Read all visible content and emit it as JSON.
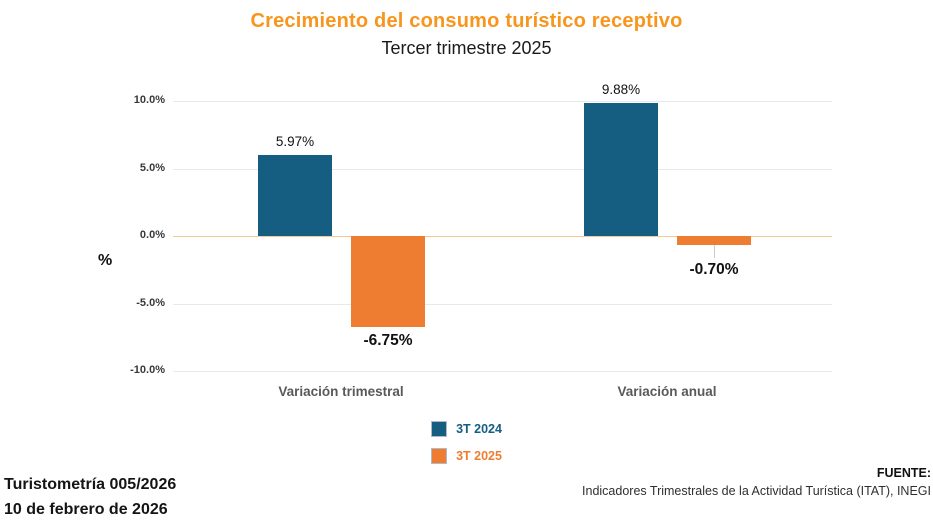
{
  "chart_data": {
    "type": "bar",
    "title": "Crecimiento del consumo turístico receptivo",
    "subtitle": "Tercer trimestre 2025",
    "categories": [
      "Variación trimestral",
      "Variación anual"
    ],
    "series": [
      {
        "name": "3T 2024",
        "color": "#155E82",
        "values": [
          5.97,
          9.88
        ],
        "labels": [
          "5.97%",
          "9.88%"
        ]
      },
      {
        "name": "3T 2025",
        "color": "#EE7D31",
        "values": [
          -6.75,
          -0.7
        ],
        "labels": [
          "-6.75%",
          "-0.70%"
        ]
      }
    ],
    "ylabel": "%",
    "ylim": [
      -10,
      10
    ],
    "yticks": [
      "10.0%",
      "5.0%",
      "0.0%",
      "-5.0%",
      "-10.0%"
    ],
    "grid": true,
    "legend_position": "bottom-center"
  },
  "footer": {
    "left_line1": "Turistometría 005/2026",
    "left_line2": "10 de febrero de 2026",
    "source_label": "FUENTE:",
    "source_text": "Indicadores Trimestrales de la Actividad Turística (ITAT), INEGI"
  },
  "colors": {
    "title": "#F8951D",
    "bar_3t2024": "#155E82",
    "bar_3t2025": "#EE7D31",
    "zero_line": "#F3C99C",
    "gridline": "#E9E9EC",
    "category_label": "#595959"
  }
}
